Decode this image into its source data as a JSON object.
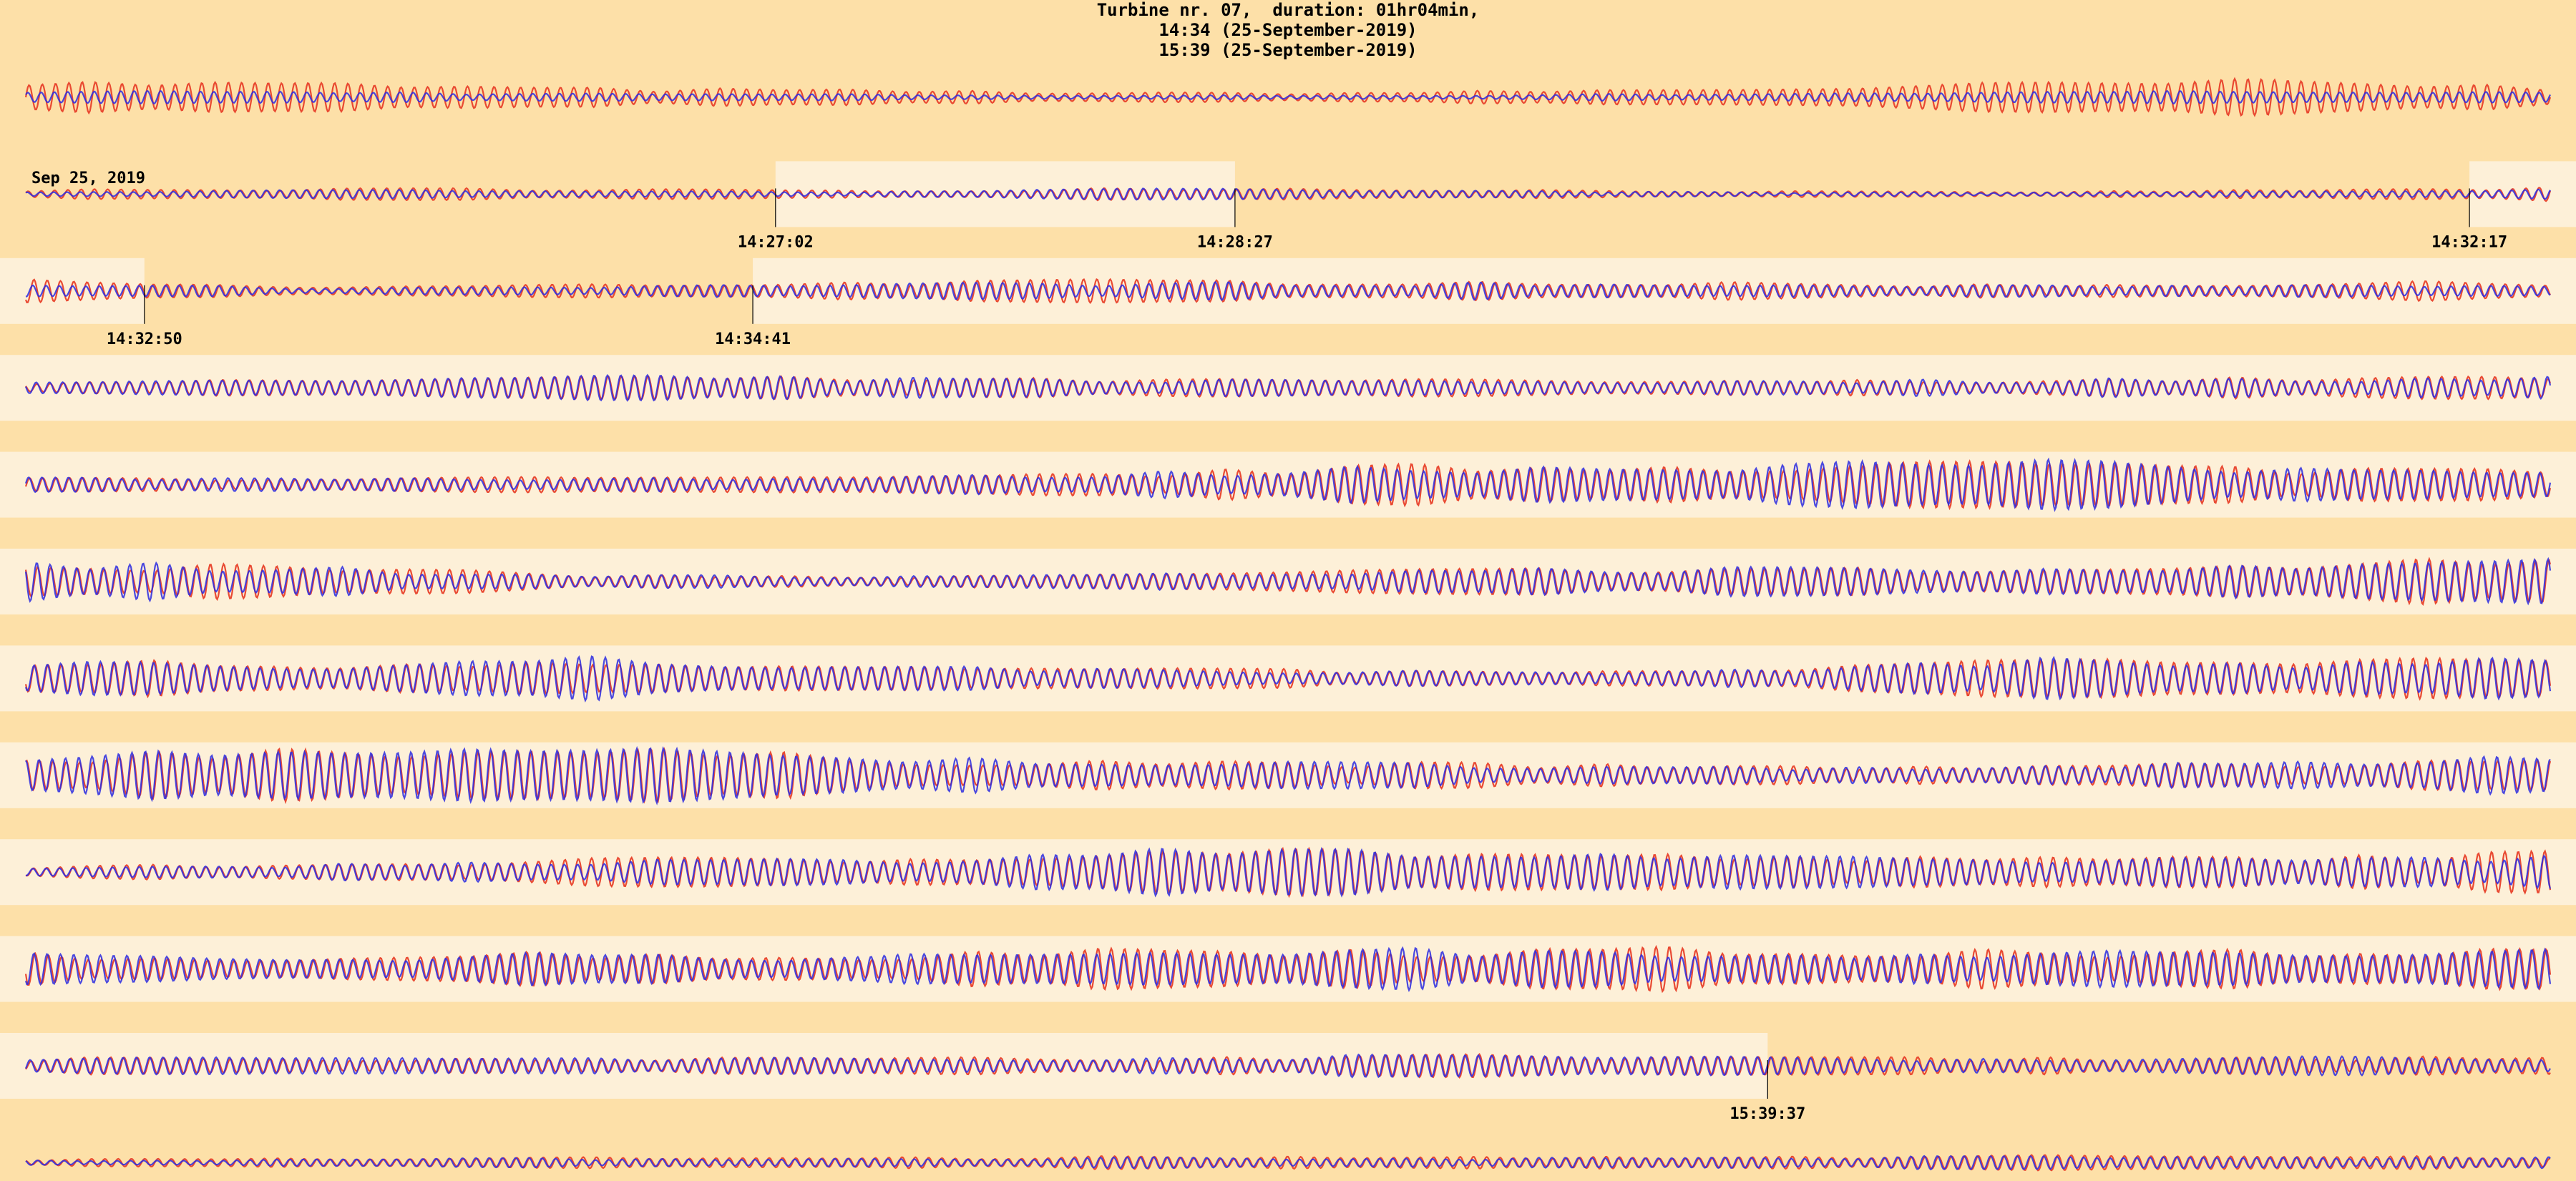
{
  "title": {
    "line1": "Turbine nr. 07,  duration: 01hr04min,",
    "line2": "14:34 (25-September-2019)",
    "line3": "15:39 (25-September-2019)"
  },
  "colors": {
    "background": "#fde0a8",
    "highlight": "#fdf0d8",
    "series_red": "#e8402a",
    "series_blue": "#2a2ae0"
  },
  "chart_data": {
    "type": "line",
    "title": "",
    "xlabel": "",
    "ylabel": "",
    "grid": false,
    "legend": "none",
    "row_count": 12,
    "date_label": "Sep 25, 2019",
    "series": [
      {
        "color": "red"
      },
      {
        "color": "blue"
      }
    ],
    "highlight_regions": [
      {
        "row": 1,
        "start_fraction": 0.297,
        "end_fraction": 0.479
      },
      {
        "row": 1,
        "start_fraction": 0.968,
        "end_fraction": 1.0
      },
      {
        "row": 2,
        "start_fraction": 0.0,
        "end_fraction": 0.047
      },
      {
        "row": 2,
        "start_fraction": 0.288,
        "end_fraction": 1.0
      },
      {
        "row": 3,
        "start_fraction": 0.0,
        "end_fraction": 1.0
      },
      {
        "row": 4,
        "start_fraction": 0.0,
        "end_fraction": 1.0
      },
      {
        "row": 5,
        "start_fraction": 0.0,
        "end_fraction": 1.0
      },
      {
        "row": 6,
        "start_fraction": 0.0,
        "end_fraction": 1.0
      },
      {
        "row": 7,
        "start_fraction": 0.0,
        "end_fraction": 1.0
      },
      {
        "row": 8,
        "start_fraction": 0.0,
        "end_fraction": 1.0
      },
      {
        "row": 9,
        "start_fraction": 0.0,
        "end_fraction": 1.0
      },
      {
        "row": 10,
        "start_fraction": 0.0,
        "end_fraction": 0.69
      }
    ],
    "time_markers": [
      {
        "row": 1,
        "fraction": 0.297,
        "label": "14:27:02"
      },
      {
        "row": 1,
        "fraction": 0.479,
        "label": "14:28:27"
      },
      {
        "row": 1,
        "fraction": 0.968,
        "label": "14:32:17"
      },
      {
        "row": 2,
        "fraction": 0.047,
        "label": "14:32:50"
      },
      {
        "row": 2,
        "fraction": 0.288,
        "label": "14:34:41"
      },
      {
        "row": 10,
        "fraction": 0.69,
        "label": "15:39:37"
      }
    ],
    "rows": [
      {
        "amp_red": 0.6,
        "amp_blue": 0.25,
        "cycles": 190,
        "mod": [
          0.9,
          0.8,
          0.5,
          0.4,
          0.25,
          0.3,
          0.5,
          0.75,
          0.95,
          0.6
        ]
      },
      {
        "amp_red": 0.35,
        "amp_blue": 0.25,
        "cycles": 190,
        "mod": [
          0.4,
          0.5,
          0.6,
          0.3,
          0.7,
          0.5,
          0.3,
          0.2,
          0.4,
          0.6
        ]
      },
      {
        "amp_red": 0.45,
        "amp_blue": 0.35,
        "cycles": 190,
        "mod": [
          0.8,
          0.3,
          0.5,
          0.7,
          0.8,
          0.8,
          0.6,
          0.5,
          0.6,
          0.7
        ]
      },
      {
        "amp_red": 0.55,
        "amp_blue": 0.55,
        "cycles": 190,
        "mod": [
          0.3,
          0.5,
          0.7,
          0.6,
          0.5,
          0.5,
          0.4,
          0.5,
          0.6,
          0.7
        ]
      },
      {
        "amp_red": 0.8,
        "amp_blue": 0.8,
        "cycles": 190,
        "mod": [
          0.3,
          0.3,
          0.3,
          0.3,
          0.5,
          0.8,
          0.9,
          1.0,
          0.7,
          0.8
        ]
      },
      {
        "amp_red": 0.8,
        "amp_blue": 0.8,
        "cycles": 190,
        "mod": [
          0.9,
          0.6,
          0.3,
          0.2,
          0.3,
          0.5,
          0.6,
          0.5,
          0.7,
          1.0
        ]
      },
      {
        "amp_red": 0.8,
        "amp_blue": 0.8,
        "cycles": 190,
        "mod": [
          0.8,
          0.6,
          0.9,
          0.5,
          0.4,
          0.3,
          0.3,
          0.8,
          0.7,
          0.8
        ]
      },
      {
        "amp_red": 1.0,
        "amp_blue": 1.0,
        "cycles": 190,
        "mod": [
          0.6,
          1.0,
          0.9,
          0.6,
          0.5,
          0.4,
          0.3,
          0.3,
          0.4,
          0.6
        ]
      },
      {
        "amp_red": 0.9,
        "amp_blue": 0.85,
        "cycles": 190,
        "mod": [
          0.2,
          0.3,
          0.5,
          0.5,
          1.0,
          0.8,
          0.6,
          0.5,
          0.6,
          0.7
        ]
      },
      {
        "amp_red": 0.85,
        "amp_blue": 0.8,
        "cycles": 190,
        "mod": [
          0.6,
          0.5,
          0.7,
          0.5,
          0.9,
          0.8,
          0.8,
          0.7,
          0.7,
          0.8
        ]
      },
      {
        "amp_red": 0.5,
        "amp_blue": 0.5,
        "cycles": 190,
        "mod": [
          0.5,
          0.6,
          0.6,
          0.5,
          0.6,
          0.7,
          0.7,
          0.5,
          0.6,
          0.6
        ]
      },
      {
        "amp_red": 0.35,
        "amp_blue": 0.3,
        "cycles": 190,
        "mod": [
          0.3,
          0.4,
          0.5,
          0.5,
          0.6,
          0.5,
          0.6,
          0.7,
          0.6,
          0.6
        ]
      }
    ]
  }
}
